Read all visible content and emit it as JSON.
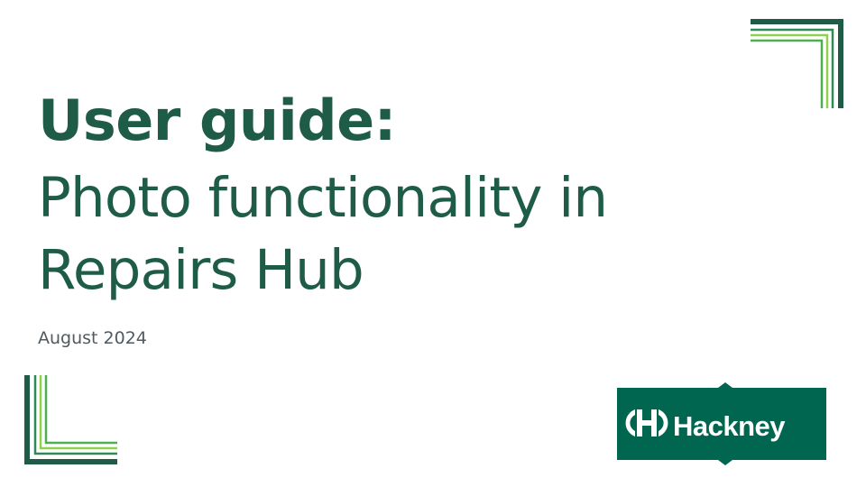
{
  "slide": {
    "title_bold": "User guide:",
    "title_line_1": "Photo functionality in",
    "title_line_2": "Repairs Hub",
    "date": "August 2024"
  },
  "logo": {
    "text": "Hackney",
    "icon": "hackney-h-logo-icon"
  },
  "colors": {
    "title": "#1e5c47",
    "date": "#505a5f",
    "logo_bg": "#00664f",
    "corner_dark": "#1e5c47",
    "corner_mid": "#4caf50",
    "corner_light": "#8ed14f"
  }
}
